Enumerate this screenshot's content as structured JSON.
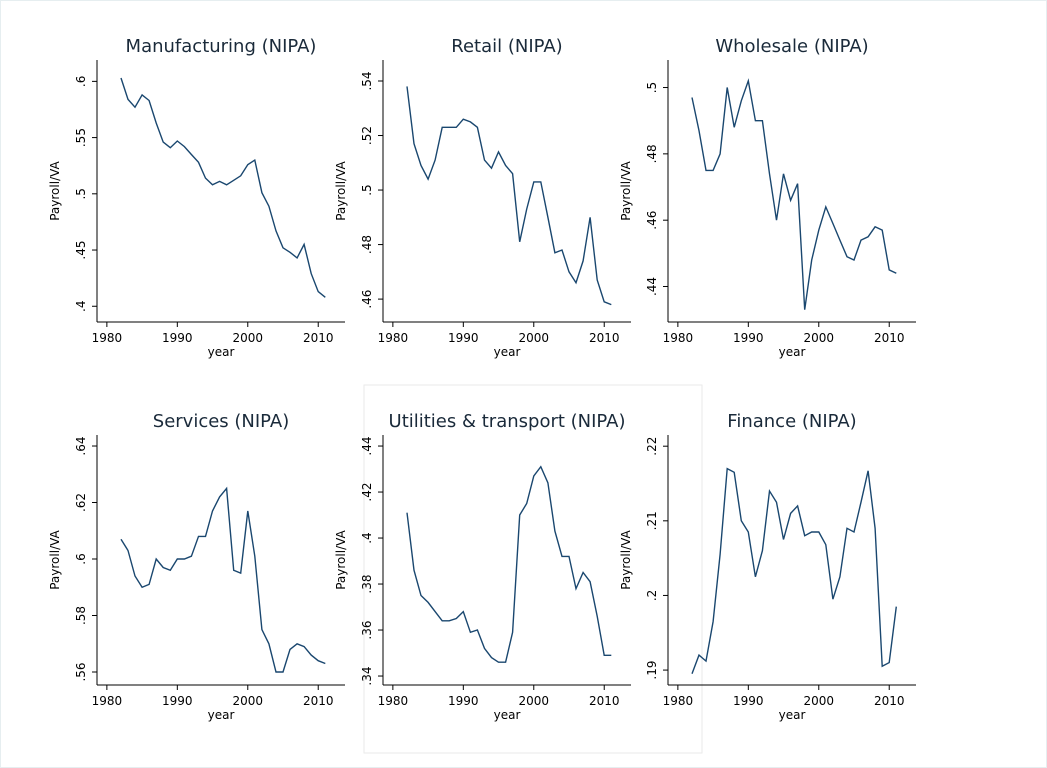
{
  "chart_data": [
    {
      "type": "line",
      "title": "Manufacturing (NIPA)",
      "xlabel": "year",
      "ylabel": "Payroll/VA",
      "x": [
        1982,
        1983,
        1984,
        1985,
        1986,
        1987,
        1988,
        1989,
        1990,
        1991,
        1992,
        1993,
        1994,
        1995,
        1996,
        1997,
        1998,
        1999,
        2000,
        2001,
        2002,
        2003,
        2004,
        2005,
        2006,
        2007,
        2008,
        2009,
        2010,
        2011
      ],
      "series": [
        {
          "color": "#1a476f",
          "values": [
            0.603,
            0.584,
            0.577,
            0.588,
            0.583,
            0.563,
            0.546,
            0.541,
            0.547,
            0.542,
            0.535,
            0.528,
            0.514,
            0.508,
            0.511,
            0.508,
            0.512,
            0.516,
            0.526,
            0.53,
            0.501,
            0.489,
            0.467,
            0.452,
            0.448,
            0.443,
            0.455,
            0.429,
            0.413,
            0.408
          ]
        }
      ],
      "xlim": [
        1978.6,
        2013.8
      ],
      "xticks": [
        1980,
        1990,
        2000,
        2010
      ],
      "ylim": [
        0.386,
        0.619
      ],
      "yticks": [
        {
          "value": 0.6,
          "label": ".6"
        },
        {
          "value": 0.55,
          "label": ".55"
        },
        {
          "value": 0.5,
          "label": ".5"
        },
        {
          "value": 0.45,
          "label": ".45"
        },
        {
          "value": 0.4,
          "label": ".4"
        }
      ]
    },
    {
      "type": "line",
      "title": "Retail (NIPA)",
      "xlabel": "year",
      "ylabel": "Payroll/VA",
      "x": [
        1982,
        1983,
        1984,
        1985,
        1986,
        1987,
        1988,
        1989,
        1990,
        1991,
        1992,
        1993,
        1994,
        1995,
        1996,
        1997,
        1998,
        1999,
        2000,
        2001,
        2002,
        2003,
        2004,
        2005,
        2006,
        2007,
        2008,
        2009,
        2010,
        2011
      ],
      "series": [
        {
          "color": "#1a476f",
          "values": [
            0.538,
            0.517,
            0.509,
            0.504,
            0.511,
            0.523,
            0.523,
            0.523,
            0.526,
            0.525,
            0.523,
            0.511,
            0.508,
            0.514,
            0.509,
            0.506,
            0.481,
            0.493,
            0.503,
            0.503,
            0.49,
            0.477,
            0.478,
            0.47,
            0.466,
            0.474,
            0.49,
            0.467,
            0.459,
            0.458
          ]
        }
      ],
      "xlim": [
        1978.6,
        2013.8
      ],
      "xticks": [
        1980,
        1990,
        2000,
        2010
      ],
      "ylim": [
        0.4516,
        0.5477
      ],
      "yticks": [
        {
          "value": 0.54,
          "label": ".54"
        },
        {
          "value": 0.52,
          "label": ".52"
        },
        {
          "value": 0.5,
          "label": ".5"
        },
        {
          "value": 0.48,
          "label": ".48"
        },
        {
          "value": 0.46,
          "label": ".46"
        }
      ]
    },
    {
      "type": "line",
      "title": "Wholesale (NIPA)",
      "xlabel": "year",
      "ylabel": "Payroll/VA",
      "x": [
        1982,
        1983,
        1984,
        1985,
        1986,
        1987,
        1988,
        1989,
        1990,
        1991,
        1992,
        1993,
        1994,
        1995,
        1996,
        1997,
        1998,
        1999,
        2000,
        2001,
        2002,
        2003,
        2004,
        2005,
        2006,
        2007,
        2008,
        2009,
        2010,
        2011
      ],
      "series": [
        {
          "color": "#1a476f",
          "values": [
            0.497,
            0.487,
            0.475,
            0.475,
            0.48,
            0.5,
            0.488,
            0.496,
            0.502,
            0.49,
            0.49,
            0.474,
            0.46,
            0.474,
            0.466,
            0.471,
            0.433,
            0.448,
            0.457,
            0.464,
            0.459,
            0.454,
            0.449,
            0.448,
            0.454,
            0.455,
            0.458,
            0.457,
            0.445,
            0.444
          ]
        }
      ],
      "xlim": [
        1978.6,
        2013.8
      ],
      "xticks": [
        1980,
        1990,
        2000,
        2010
      ],
      "ylim": [
        0.4293,
        0.5083
      ],
      "yticks": [
        {
          "value": 0.5,
          "label": ".5"
        },
        {
          "value": 0.48,
          "label": ".48"
        },
        {
          "value": 0.46,
          "label": ".46"
        },
        {
          "value": 0.44,
          "label": ".44"
        }
      ]
    },
    {
      "type": "line",
      "title": "Services (NIPA)",
      "xlabel": "year",
      "ylabel": "Payroll/VA",
      "x": [
        1982,
        1983,
        1984,
        1985,
        1986,
        1987,
        1988,
        1989,
        1990,
        1991,
        1992,
        1993,
        1994,
        1995,
        1996,
        1997,
        1998,
        1999,
        2000,
        2001,
        2002,
        2003,
        2004,
        2005,
        2006,
        2007,
        2008,
        2009,
        2010,
        2011
      ],
      "series": [
        {
          "color": "#1a476f",
          "values": [
            0.607,
            0.603,
            0.594,
            0.59,
            0.591,
            0.6,
            0.597,
            0.596,
            0.6,
            0.6,
            0.601,
            0.608,
            0.608,
            0.617,
            0.622,
            0.625,
            0.596,
            0.595,
            0.617,
            0.601,
            0.575,
            0.57,
            0.56,
            0.56,
            0.568,
            0.57,
            0.569,
            0.566,
            0.564,
            0.563
          ]
        }
      ],
      "xlim": [
        1978.6,
        2013.8
      ],
      "xticks": [
        1980,
        1990,
        2000,
        2010
      ],
      "ylim": [
        0.5554,
        0.6439
      ],
      "yticks": [
        {
          "value": 0.64,
          "label": ".64"
        },
        {
          "value": 0.62,
          "label": ".62"
        },
        {
          "value": 0.6,
          "label": ".6"
        },
        {
          "value": 0.58,
          "label": ".58"
        },
        {
          "value": 0.56,
          "label": ".56"
        }
      ]
    },
    {
      "type": "line",
      "title": "Utilities & transport (NIPA)",
      "xlabel": "year",
      "ylabel": "Payroll/VA",
      "x": [
        1982,
        1983,
        1984,
        1985,
        1986,
        1987,
        1988,
        1989,
        1990,
        1991,
        1992,
        1993,
        1994,
        1995,
        1996,
        1997,
        1998,
        1999,
        2000,
        2001,
        2002,
        2003,
        2004,
        2005,
        2006,
        2007,
        2008,
        2009,
        2010,
        2011
      ],
      "series": [
        {
          "color": "#1a476f",
          "values": [
            0.411,
            0.386,
            0.375,
            0.372,
            0.368,
            0.364,
            0.364,
            0.365,
            0.368,
            0.359,
            0.36,
            0.352,
            0.348,
            0.346,
            0.346,
            0.359,
            0.41,
            0.415,
            0.427,
            0.431,
            0.424,
            0.403,
            0.392,
            0.392,
            0.378,
            0.385,
            0.381,
            0.366,
            0.349,
            0.349
          ]
        }
      ],
      "xlim": [
        1978.6,
        2013.8
      ],
      "xticks": [
        1980,
        1990,
        2000,
        2010
      ],
      "ylim": [
        0.3361,
        0.4448
      ],
      "yticks": [
        {
          "value": 0.44,
          "label": ".44"
        },
        {
          "value": 0.42,
          "label": ".42"
        },
        {
          "value": 0.4,
          "label": ".4"
        },
        {
          "value": 0.38,
          "label": ".38"
        },
        {
          "value": 0.36,
          "label": ".36"
        },
        {
          "value": 0.34,
          "label": ".34"
        }
      ]
    },
    {
      "type": "line",
      "title": "Finance (NIPA)",
      "xlabel": "year",
      "ylabel": "Payroll/VA",
      "x": [
        1982,
        1983,
        1984,
        1985,
        1986,
        1987,
        1988,
        1989,
        1990,
        1991,
        1992,
        1993,
        1994,
        1995,
        1996,
        1997,
        1998,
        1999,
        2000,
        2001,
        2002,
        2003,
        2004,
        2005,
        2006,
        2007,
        2008,
        2009,
        2010,
        2011
      ],
      "series": [
        {
          "color": "#1a476f",
          "values": [
            0.1895,
            0.192,
            0.1912,
            0.1965,
            0.2055,
            0.217,
            0.2165,
            0.21,
            0.2085,
            0.2025,
            0.206,
            0.214,
            0.2125,
            0.2075,
            0.211,
            0.212,
            0.208,
            0.2085,
            0.2085,
            0.2068,
            0.1995,
            0.2025,
            0.209,
            0.2085,
            0.2125,
            0.2167,
            0.209,
            0.1905,
            0.191,
            0.1985
          ]
        }
      ],
      "xlim": [
        1978.6,
        2013.8
      ],
      "xticks": [
        1980,
        1990,
        2000,
        2010
      ],
      "ylim": [
        0.188,
        0.2215
      ],
      "yticks": [
        {
          "value": 0.22,
          "label": ".22"
        },
        {
          "value": 0.21,
          "label": ".21"
        },
        {
          "value": 0.2,
          "label": ".2"
        },
        {
          "value": 0.19,
          "label": ".19"
        }
      ]
    }
  ]
}
